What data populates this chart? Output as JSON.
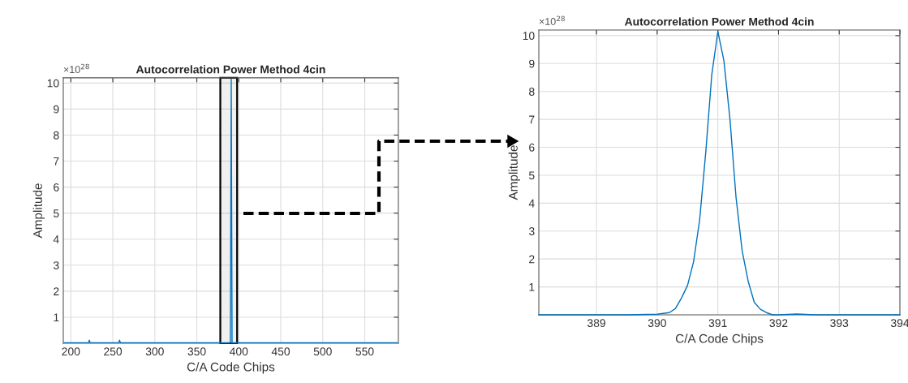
{
  "chart_data": [
    {
      "type": "line",
      "title": "Autocorrelation Power Method 4cin",
      "xlabel": "C/A Code Chips",
      "ylabel": "Amplitude",
      "annotations": [
        "×10$^{28}$"
      ],
      "series": [
        {
          "color": "#0072bd",
          "x": [
            192,
            221,
            222,
            223,
            257,
            258,
            259,
            389,
            390,
            391,
            392,
            589
          ],
          "values": [
            0.02,
            0.02,
            0.12,
            0.02,
            0.02,
            0.12,
            0.02,
            0.02,
            0.05,
            10.15,
            0.02,
            0.02
          ]
        }
      ],
      "bands": [
        {
          "axis": "x",
          "from": 378,
          "to": 398,
          "color": "#000000"
        }
      ],
      "xlim": [
        191,
        590
      ],
      "xticks": [
        200,
        250,
        300,
        350,
        400,
        450,
        500,
        550
      ],
      "ylim": [
        0,
        10.2
      ],
      "yticks": [
        1,
        2,
        3,
        4,
        5,
        6,
        7,
        8,
        9,
        10
      ],
      "grid": true
    },
    {
      "type": "line",
      "title": "Autocorrelation Power Method 4cin",
      "xlabel": "C/A Code Chips",
      "ylabel": "Amplitude",
      "annotations": [
        "×10$^{28}$"
      ],
      "series": [
        {
          "color": "#0072bd",
          "x": [
            388.05,
            389.5,
            390.0,
            390.1,
            390.2,
            390.3,
            390.4,
            390.5,
            390.6,
            390.7,
            390.8,
            390.9,
            391.0,
            391.1,
            391.2,
            391.3,
            391.4,
            391.5,
            391.6,
            391.7,
            391.8,
            391.9,
            392.0,
            392.3,
            392.6,
            394.0
          ],
          "values": [
            0,
            0,
            0.02,
            0.05,
            0.08,
            0.22,
            0.6,
            1.05,
            1.9,
            3.4,
            5.8,
            8.6,
            10.15,
            9.1,
            7.0,
            4.2,
            2.3,
            1.2,
            0.45,
            0.2,
            0.08,
            0.0,
            0.0,
            0.03,
            0.0,
            0.0
          ]
        }
      ],
      "xlim": [
        388.05,
        394
      ],
      "xticks": [
        389,
        390,
        391,
        392,
        393,
        394
      ],
      "ylim": [
        0,
        10.2
      ],
      "yticks": [
        1,
        2,
        3,
        4,
        5,
        6,
        7,
        8,
        9,
        10
      ],
      "grid": true
    }
  ]
}
